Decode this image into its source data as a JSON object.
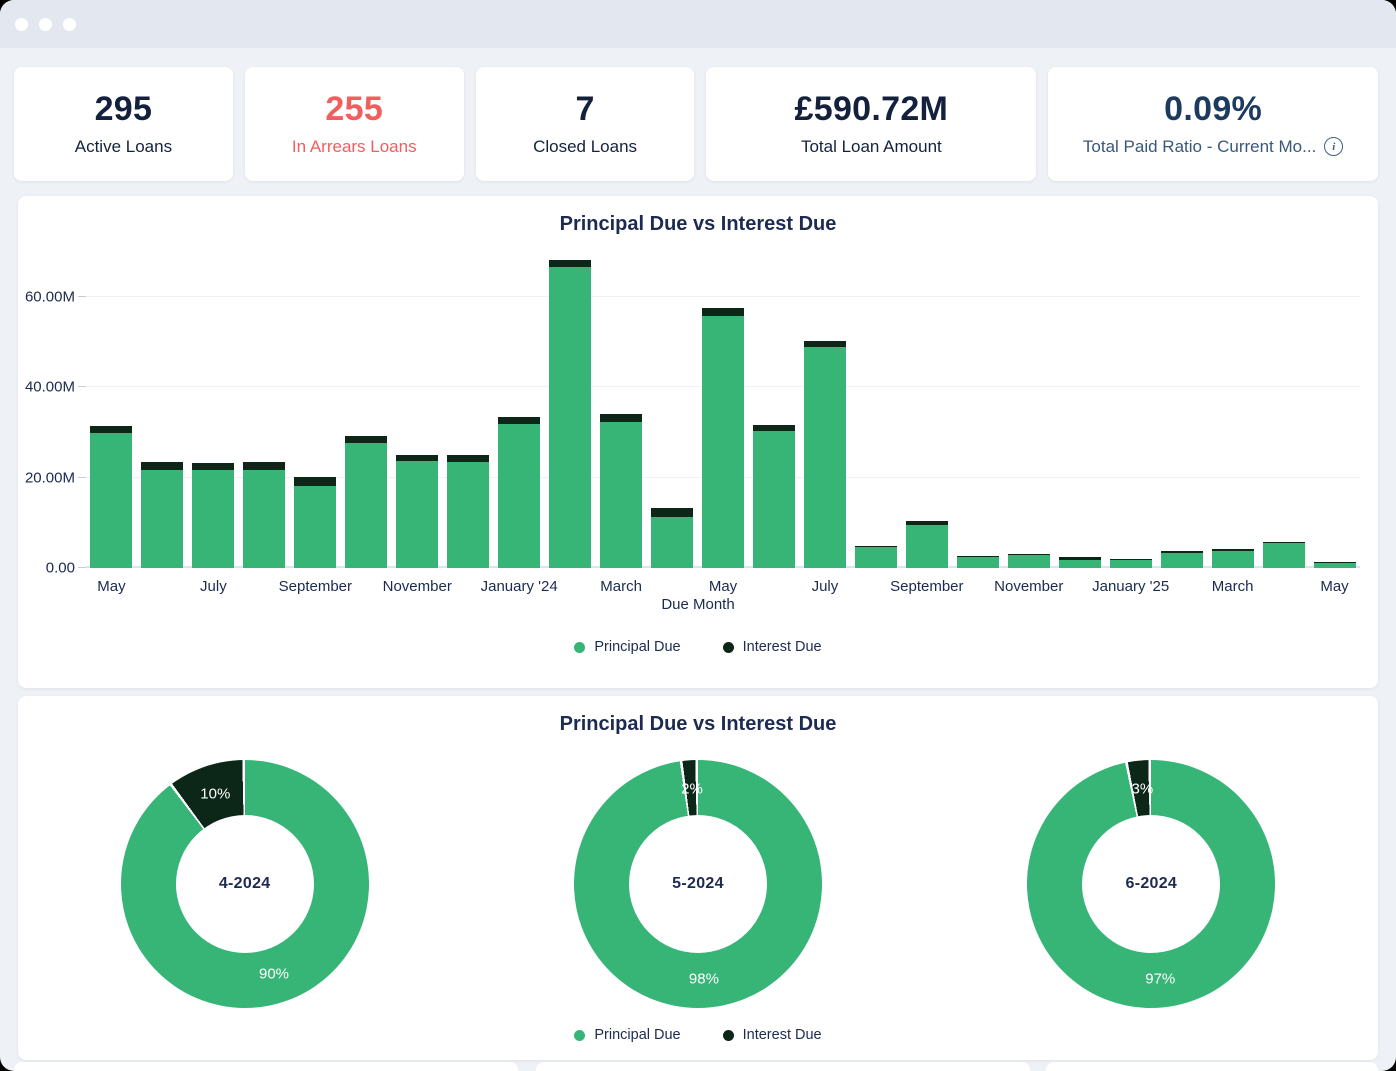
{
  "colors": {
    "principal": "#36b577",
    "interest": "#0c2617",
    "navy": "#14213d",
    "red": "#f15e5e",
    "page_bg": "#eef1f6",
    "topbar_bg": "#e2e7f0"
  },
  "kpi_cards": [
    {
      "value": "295",
      "label": "Active Loans"
    },
    {
      "value": "255",
      "label": "In Arrears Loans"
    },
    {
      "value": "7",
      "label": "Closed Loans"
    },
    {
      "value": "£590.72M",
      "label": "Total Loan Amount"
    },
    {
      "value": "0.09%",
      "label": "Total Paid Ratio - Current Mo...",
      "info_icon": "info-icon"
    }
  ],
  "chart_data": [
    {
      "type": "bar",
      "stacked": true,
      "title": "Principal Due vs Interest Due",
      "xlabel": "Due Month",
      "ylabel": "",
      "unit": "millions GBP",
      "ylim": [
        0,
        70
      ],
      "grid": true,
      "legend_position": "bottom",
      "n_bars": 25,
      "x_tick_labels": [
        "May",
        "July",
        "September",
        "November",
        "January '24",
        "March",
        "May",
        "July",
        "September",
        "November",
        "January '25",
        "March",
        "May"
      ],
      "x_tick_bar_indices": [
        0,
        2,
        4,
        6,
        8,
        10,
        12,
        14,
        16,
        18,
        20,
        22,
        24
      ],
      "y_ticks": [
        {
          "label": "0.00",
          "value": 0
        },
        {
          "label": "20.00M",
          "value": 20
        },
        {
          "label": "40.00M",
          "value": 40
        },
        {
          "label": "60.00M",
          "value": 60
        }
      ],
      "series": [
        {
          "name": "Principal Due",
          "color": "#36b577",
          "values": [
            30.0,
            21.7,
            21.7,
            21.8,
            18.2,
            27.6,
            23.6,
            23.4,
            31.9,
            66.6,
            32.4,
            11.4,
            55.9,
            30.3,
            49.0,
            4.6,
            9.5,
            2.4,
            2.8,
            1.8,
            1.7,
            3.4,
            3.8,
            5.5,
            1.3
          ]
        },
        {
          "name": "Interest Due",
          "color": "#0c2617",
          "values": [
            1.5,
            1.7,
            1.6,
            1.7,
            2.0,
            1.6,
            1.5,
            1.7,
            1.5,
            1.7,
            1.8,
            1.8,
            1.6,
            1.4,
            1.4,
            0.3,
            0.9,
            0.3,
            0.2,
            0.7,
            0.4,
            0.3,
            0.5,
            0.2,
            0.1
          ]
        }
      ]
    },
    {
      "type": "pie",
      "subtype": "donut",
      "title": "Principal Due vs Interest Due",
      "legend": [
        "Principal Due",
        "Interest Due"
      ],
      "legend_position": "bottom",
      "donuts": [
        {
          "center_label": "4-2024",
          "slices": [
            {
              "name": "Principal Due",
              "pct": 90
            },
            {
              "name": "Interest Due",
              "pct": 10
            }
          ]
        },
        {
          "center_label": "5-2024",
          "slices": [
            {
              "name": "Principal Due",
              "pct": 98
            },
            {
              "name": "Interest Due",
              "pct": 2
            }
          ]
        },
        {
          "center_label": "6-2024",
          "slices": [
            {
              "name": "Principal Due",
              "pct": 97
            },
            {
              "name": "Interest Due",
              "pct": 3
            }
          ]
        }
      ]
    }
  ]
}
